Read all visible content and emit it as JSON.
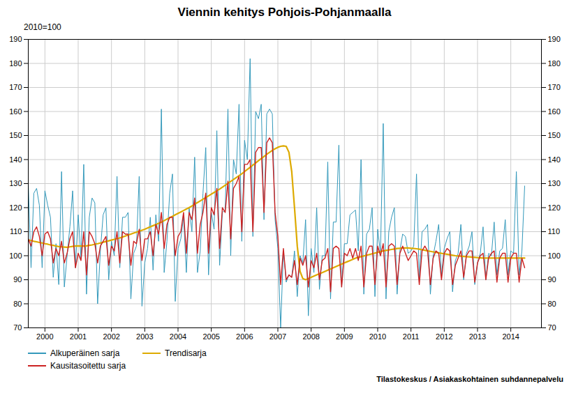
{
  "chart_data": {
    "type": "line",
    "title": "Viennin kehitys Pohjois-Pohjanmaalla",
    "subtitle": "2010=100",
    "source": "Tilastokeskus / Asiakaskohtainen suhdannepalvelu",
    "x": [
      1999.5,
      1999.5833,
      1999.6667,
      1999.75,
      1999.8333,
      1999.9167,
      2000,
      2000.0833,
      2000.1667,
      2000.25,
      2000.3333,
      2000.4167,
      2000.5,
      2000.5833,
      2000.6667,
      2000.75,
      2000.8333,
      2000.9167,
      2001,
      2001.0833,
      2001.1667,
      2001.25,
      2001.3333,
      2001.4167,
      2001.5,
      2001.5833,
      2001.6667,
      2001.75,
      2001.8333,
      2001.9167,
      2002,
      2002.0833,
      2002.1667,
      2002.25,
      2002.3333,
      2002.4167,
      2002.5,
      2002.5833,
      2002.6667,
      2002.75,
      2002.8333,
      2002.9167,
      2003,
      2003.0833,
      2003.1667,
      2003.25,
      2003.3333,
      2003.4167,
      2003.5,
      2003.5833,
      2003.6667,
      2003.75,
      2003.8333,
      2003.9167,
      2004,
      2004.0833,
      2004.1667,
      2004.25,
      2004.3333,
      2004.4167,
      2004.5,
      2004.5833,
      2004.6667,
      2004.75,
      2004.8333,
      2004.9167,
      2005,
      2005.0833,
      2005.1667,
      2005.25,
      2005.3333,
      2005.4167,
      2005.5,
      2005.5833,
      2005.6667,
      2005.75,
      2005.8333,
      2005.9167,
      2006,
      2006.0833,
      2006.1667,
      2006.25,
      2006.3333,
      2006.4167,
      2006.5,
      2006.5833,
      2006.6667,
      2006.75,
      2006.8333,
      2006.9167,
      2007,
      2007.0833,
      2007.1667,
      2007.25,
      2007.3333,
      2007.4167,
      2007.5,
      2007.5833,
      2007.6667,
      2007.75,
      2007.8333,
      2007.9167,
      2008,
      2008.0833,
      2008.1667,
      2008.25,
      2008.3333,
      2008.4167,
      2008.5,
      2008.5833,
      2008.6667,
      2008.75,
      2008.8333,
      2008.9167,
      2009,
      2009.0833,
      2009.1667,
      2009.25,
      2009.3333,
      2009.4167,
      2009.5,
      2009.5833,
      2009.6667,
      2009.75,
      2009.8333,
      2009.9167,
      2010,
      2010.0833,
      2010.1667,
      2010.25,
      2010.3333,
      2010.4167,
      2010.5,
      2010.5833,
      2010.6667,
      2010.75,
      2010.8333,
      2010.9167,
      2011,
      2011.0833,
      2011.1667,
      2011.25,
      2011.3333,
      2011.4167,
      2011.5,
      2011.5833,
      2011.6667,
      2011.75,
      2011.8333,
      2011.9167,
      2012,
      2012.0833,
      2012.1667,
      2012.25,
      2012.3333,
      2012.4167,
      2012.5,
      2012.5833,
      2012.6667,
      2012.75,
      2012.8333,
      2012.9167,
      2013,
      2013.0833,
      2013.1667,
      2013.25,
      2013.3333,
      2013.4167,
      2013.5,
      2013.5833,
      2013.6667,
      2013.75,
      2013.8333,
      2013.9167,
      2014,
      2014.0833,
      2014.1667,
      2014.25,
      2014.3333,
      2014.4167
    ],
    "series": [
      {
        "name": "Alkuperäinen sarja",
        "color": "#3399bb",
        "values": [
          130,
          95,
          126,
          128,
          121,
          95,
          127,
          121,
          116,
          91,
          105,
          88,
          135,
          87,
          100,
          112,
          127,
          95,
          117,
          99,
          138,
          84,
          116,
          124,
          122,
          80,
          102,
          117,
          120,
          90,
          106,
          100,
          133,
          95,
          116,
          116,
          118,
          82,
          101,
          104,
          133,
          79,
          97,
          103,
          116,
          94,
          117,
          106,
          161,
          93,
          106,
          126,
          134,
          81,
          103,
          107,
          116,
          93,
          120,
          110,
          141,
          93,
          102,
          126,
          145,
          92,
          118,
          111,
          152,
          96,
          118,
          119,
          161,
          100,
          140,
          134,
          163,
          106,
          148,
          140,
          182,
          108,
          160,
          157,
          163,
          115,
          159,
          161,
          159,
          115,
          103,
          70,
          102,
          89,
          92,
          91,
          102,
          83,
          100,
          97,
          115,
          75,
          103,
          93,
          120,
          86,
          100,
          100,
          139,
          82,
          114,
          114,
          146,
          87,
          105,
          105,
          117,
          118,
          119,
          102,
          140,
          84,
          109,
          111,
          120,
          83,
          111,
          101,
          155,
          82,
          110,
          116,
          120,
          84,
          102,
          109,
          108,
          101,
          102,
          104,
          134,
          90,
          110,
          111,
          113,
          84,
          100,
          106,
          113,
          92,
          103,
          107,
          110,
          85,
          98,
          101,
          113,
          90,
          101,
          104,
          110,
          88,
          97,
          101,
          112,
          90,
          101,
          100,
          114,
          92,
          102,
          103,
          115,
          92,
          102,
          101,
          135,
          92,
          102,
          129
        ]
      },
      {
        "name": "Trendisarja",
        "color": "#ddaa00",
        "values": [
          106.5,
          106.3,
          106.0,
          105.8,
          105.5,
          105.3,
          105.0,
          104.8,
          104.5,
          104.3,
          104.0,
          103.8,
          103.7,
          103.6,
          103.5,
          103.7,
          103.9,
          104.0,
          104.1,
          104.0,
          104.0,
          104.1,
          104.3,
          104.5,
          104.8,
          105.0,
          105.3,
          105.6,
          105.9,
          106.2,
          106.5,
          106.8,
          107.1,
          107.4,
          107.8,
          108.2,
          108.6,
          109.0,
          109.4,
          109.8,
          110.2,
          110.6,
          111.0,
          111.5,
          112.0,
          112.5,
          113.0,
          113.5,
          114.0,
          114.6,
          115.2,
          115.8,
          116.4,
          117.0,
          117.6,
          118.2,
          118.8,
          119.4,
          120.0,
          120.7,
          121.4,
          122.1,
          122.8,
          123.5,
          124.2,
          124.9,
          125.6,
          126.3,
          127.0,
          127.7,
          128.5,
          129.3,
          130.1,
          130.9,
          131.7,
          132.5,
          133.3,
          134.1,
          135.0,
          135.9,
          136.8,
          137.7,
          138.6,
          139.5,
          140.4,
          141.3,
          142.2,
          143.0,
          143.8,
          144.5,
          145.1,
          145.5,
          145.7,
          145.5,
          143.0,
          135.0,
          120.0,
          104.0,
          93.5,
          90.5,
          90.0,
          90.5,
          91.0,
          91.5,
          92.0,
          92.5,
          93.0,
          93.5,
          94.0,
          94.5,
          95.0,
          95.5,
          96.0,
          96.5,
          97.0,
          97.5,
          98.0,
          98.5,
          99.0,
          99.3,
          99.6,
          99.9,
          100.2,
          100.5,
          100.8,
          101.1,
          101.4,
          101.7,
          102.0,
          102.2,
          102.4,
          102.6,
          102.8,
          103.0,
          103.1,
          103.2,
          103.2,
          103.2,
          103.1,
          103.0,
          102.9,
          102.7,
          102.5,
          102.3,
          102.0,
          101.8,
          101.6,
          101.4,
          101.2,
          101.0,
          100.8,
          100.6,
          100.4,
          100.2,
          100.0,
          99.9,
          99.8,
          99.7,
          99.6,
          99.5,
          99.4,
          99.3,
          99.2,
          99.1,
          99.0,
          99.0,
          99.0,
          99.0,
          99.0,
          99.0,
          99.0,
          99.0,
          99.0,
          99.0,
          99.0,
          99.0,
          99.0,
          99.0,
          99.0,
          99.0
        ]
      },
      {
        "name": "Kausitasoitettu sarja",
        "color": "#cc2222",
        "values": [
          107,
          104,
          110,
          112,
          108,
          100,
          109,
          110,
          107,
          97,
          103,
          100,
          106,
          97,
          101,
          107,
          110,
          95,
          101,
          98,
          110,
          92,
          110,
          108,
          105,
          97,
          104,
          106,
          108,
          96,
          104,
          102,
          110,
          97,
          110,
          109,
          109,
          96,
          106,
          105,
          111,
          98,
          107,
          107,
          110,
          100,
          113,
          109,
          118,
          103,
          113,
          116,
          116,
          100,
          108,
          110,
          118,
          101,
          118,
          115,
          124,
          101,
          113,
          118,
          126,
          101,
          120,
          117,
          128,
          103,
          120,
          118,
          131,
          107,
          128,
          130,
          133,
          110,
          138,
          138,
          140,
          110,
          143,
          145,
          145,
          118,
          147,
          149,
          147,
          118,
          108,
          88,
          103,
          90,
          92,
          91,
          98,
          88,
          99,
          96,
          100,
          87,
          98,
          95,
          101,
          90,
          98,
          99,
          103,
          85,
          103,
          104,
          103,
          87,
          101,
          100,
          103,
          99,
          103,
          98,
          104,
          87,
          101,
          104,
          104,
          88,
          104,
          100,
          105,
          87,
          104,
          105,
          104,
          88,
          101,
          104,
          101,
          98,
          100,
          102,
          101,
          88,
          102,
          104,
          102,
          88,
          99,
          102,
          101,
          90,
          101,
          103,
          102,
          88,
          96,
          99,
          102,
          91,
          100,
          102,
          102,
          89,
          97,
          100,
          101,
          90,
          99,
          101,
          102,
          89,
          99,
          101,
          101,
          89,
          99,
          101,
          101,
          89,
          99,
          95
        ]
      }
    ],
    "xlim": [
      1999.5,
      2014.92
    ],
    "xticks": [
      2000,
      2001,
      2002,
      2003,
      2004,
      2005,
      2006,
      2007,
      2008,
      2009,
      2010,
      2011,
      2012,
      2013,
      2014
    ],
    "ylim": [
      70,
      190
    ],
    "yticks": [
      70,
      80,
      90,
      100,
      110,
      120,
      130,
      140,
      150,
      160,
      170,
      180,
      190
    ],
    "grid": true,
    "legend": "bottom"
  }
}
